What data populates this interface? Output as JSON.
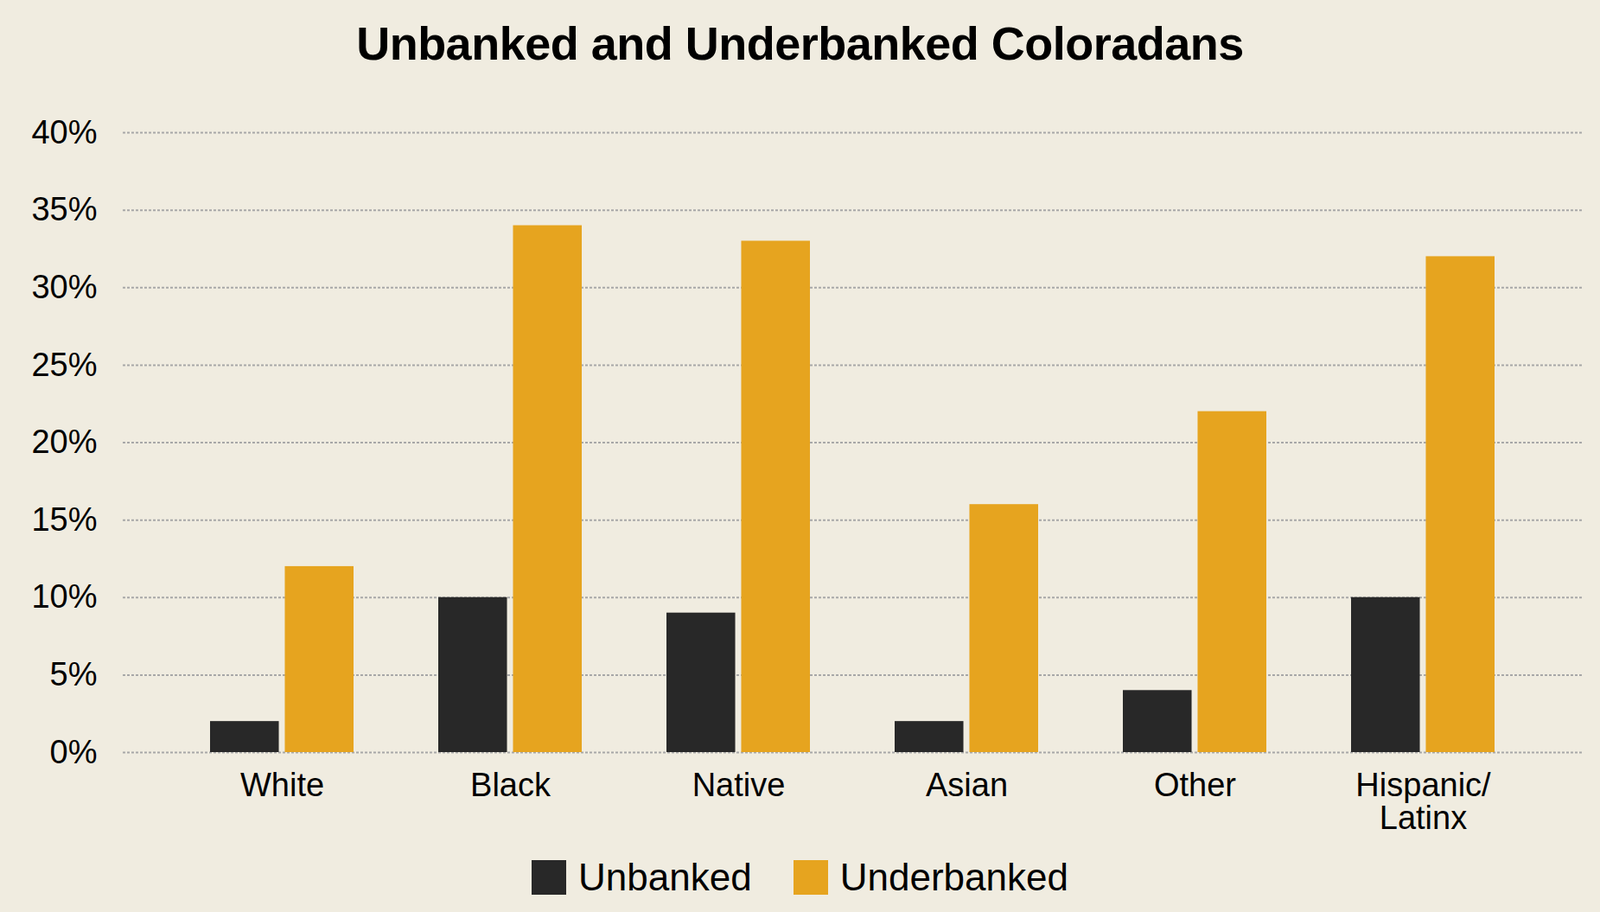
{
  "chart_data": {
    "type": "bar",
    "title": "Unbanked and Underbanked Coloradans",
    "categories": [
      "White",
      "Black",
      "Native",
      "Asian",
      "Other",
      "Hispanic/Latinx"
    ],
    "series": [
      {
        "name": "Unbanked",
        "color": "#282828",
        "values": [
          2,
          10,
          9,
          2,
          4,
          10
        ]
      },
      {
        "name": "Underbanked",
        "color": "#e6a41f",
        "values": [
          12,
          34,
          33,
          16,
          22,
          32
        ]
      }
    ],
    "ylim": [
      0,
      40
    ],
    "yticks": [
      {
        "value": 0,
        "label": "0%"
      },
      {
        "value": 5,
        "label": "5%"
      },
      {
        "value": 10,
        "label": "10%"
      },
      {
        "value": 15,
        "label": "15%"
      },
      {
        "value": 20,
        "label": "20%"
      },
      {
        "value": 25,
        "label": "25%"
      },
      {
        "value": 30,
        "label": "30%"
      },
      {
        "value": 35,
        "label": "35%"
      },
      {
        "value": 40,
        "label": "40%"
      }
    ],
    "grid": true,
    "legend": "bottom"
  }
}
